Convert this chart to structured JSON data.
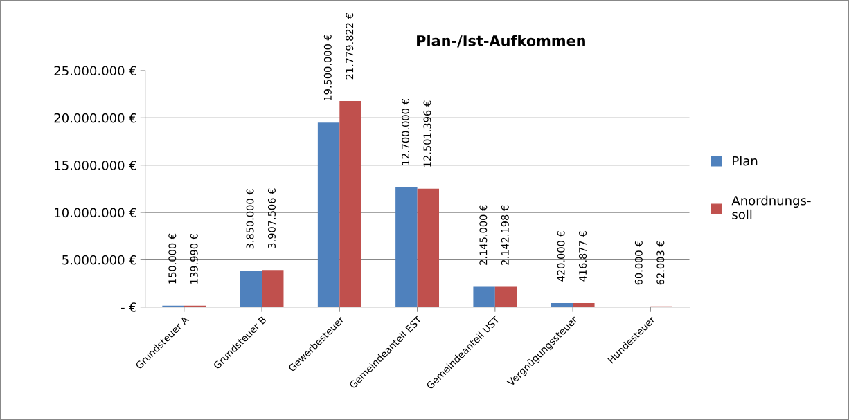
{
  "chart_data": {
    "type": "bar",
    "title": "Plan-/Ist-Aufkommen",
    "categories": [
      "Grundsteuer A",
      "Grundsteuer B",
      "Gewerbesteuer",
      "Gemeindeanteil EST",
      "Gemeindeanteil UST",
      "Vergnügungssteuer",
      "Hundesteuer"
    ],
    "series": [
      {
        "name": "Plan",
        "color": "#4f81bd",
        "values": [
          150000,
          3850000,
          19500000,
          12700000,
          2145000,
          420000,
          60000
        ],
        "value_labels": [
          "150.000 €",
          "3.850.000 €",
          "19.500.000 €",
          "12.700.000 €",
          "2.145.000 €",
          "420.000 €",
          "60.000 €"
        ]
      },
      {
        "name": "Anordnungs-\nsoll",
        "color": "#c0504d",
        "values": [
          139990,
          3907506,
          21779822,
          12501396,
          2142198,
          416877,
          62003
        ],
        "value_labels": [
          "139.990 €",
          "3.907.506 €",
          "21.779.822 €",
          "12.501.396 €",
          "2.142.198 €",
          "416.877 €",
          "62.003 €"
        ]
      }
    ],
    "ylim": [
      0,
      25000000
    ],
    "yticks": [
      {
        "value": 0,
        "label": "- €"
      },
      {
        "value": 5000000,
        "label": "5.000.000 €"
      },
      {
        "value": 10000000,
        "label": "10.000.000 €"
      },
      {
        "value": 15000000,
        "label": "15.000.000 €"
      },
      {
        "value": 20000000,
        "label": "20.000.000 €"
      },
      {
        "value": 25000000,
        "label": "25.000.000 €"
      }
    ],
    "grid": "y",
    "legend": "right"
  }
}
